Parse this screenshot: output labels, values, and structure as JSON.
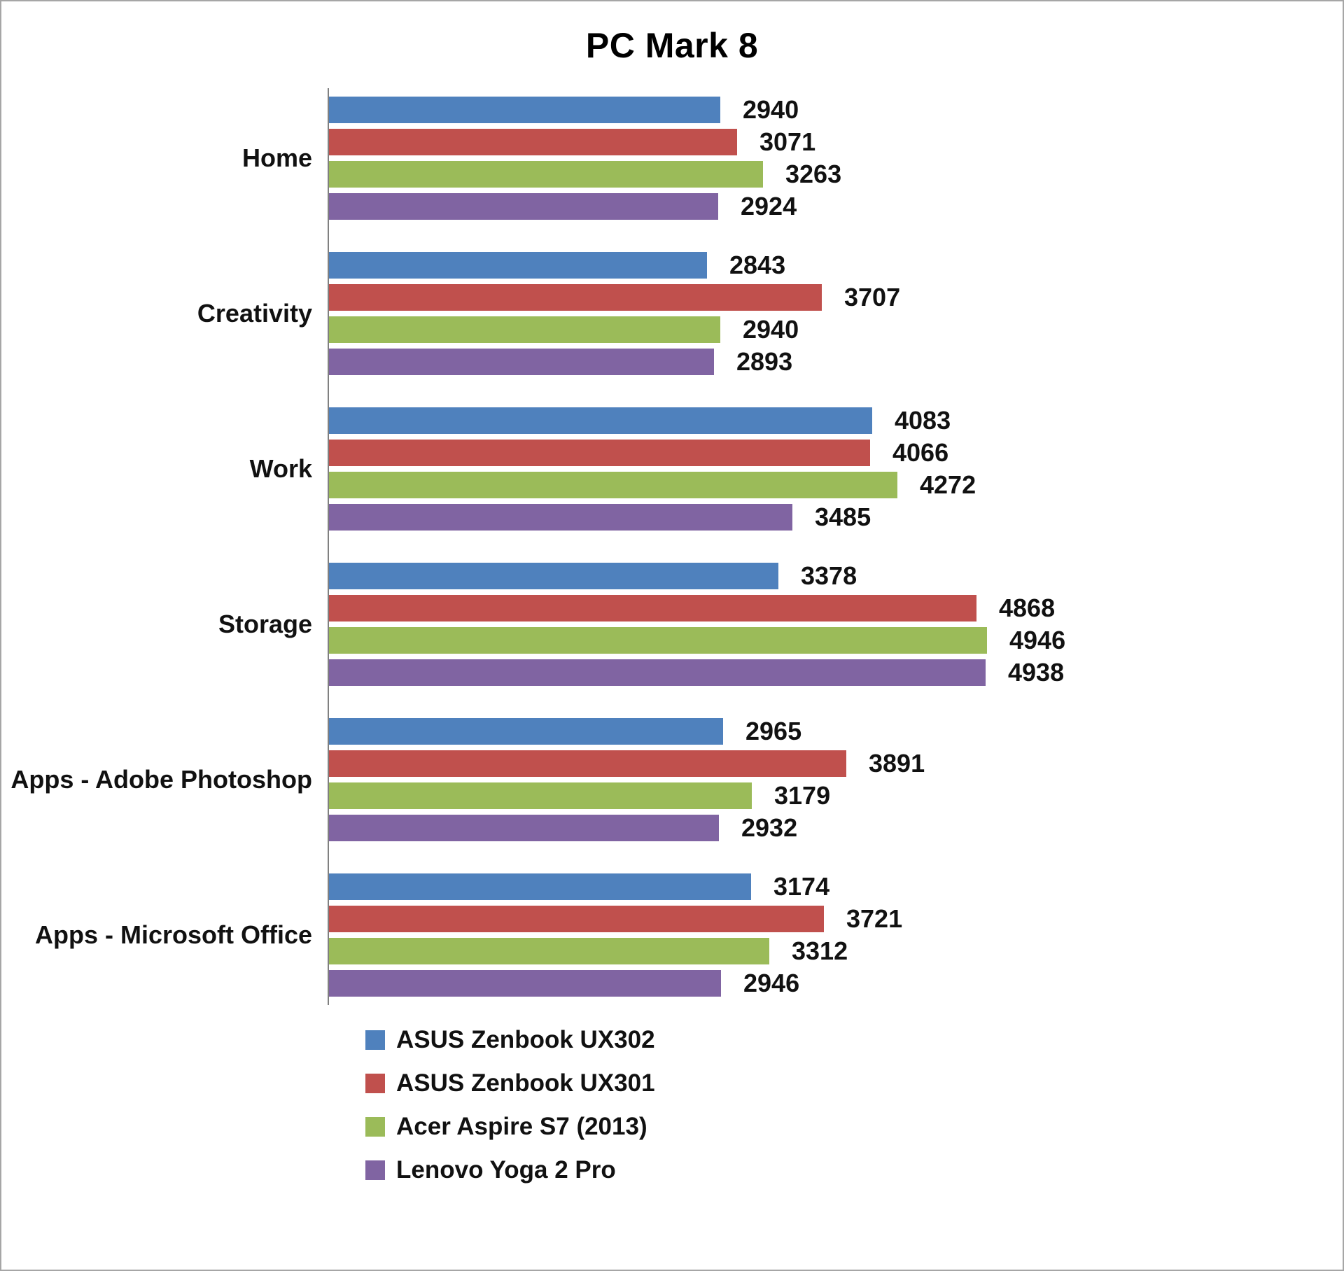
{
  "chart_data": {
    "type": "bar",
    "orientation": "horizontal",
    "title": "PC Mark 8",
    "categories": [
      "Home",
      "Creativity",
      "Work",
      "Storage",
      "Apps - Adobe Photoshop",
      "Apps - Microsoft Office"
    ],
    "series": [
      {
        "name": "ASUS Zenbook UX302",
        "color": "#4F81BD",
        "values": [
          2940,
          2843,
          4083,
          3378,
          2965,
          3174
        ]
      },
      {
        "name": "ASUS Zenbook UX301",
        "color": "#C0504D",
        "values": [
          3071,
          3707,
          4066,
          4868,
          3891,
          3721
        ]
      },
      {
        "name": "Acer Aspire S7 (2013)",
        "color": "#9BBB59",
        "values": [
          3263,
          2940,
          4272,
          4946,
          3179,
          3312
        ]
      },
      {
        "name": "Lenovo Yoga 2 Pro",
        "color": "#8064A2",
        "values": [
          2924,
          2893,
          3485,
          4938,
          2932,
          2946
        ]
      }
    ],
    "xlim": [
      0,
      5000
    ],
    "value_labels": true,
    "grid": false,
    "axis_color": "#808080",
    "legend_position": "bottom-left"
  }
}
